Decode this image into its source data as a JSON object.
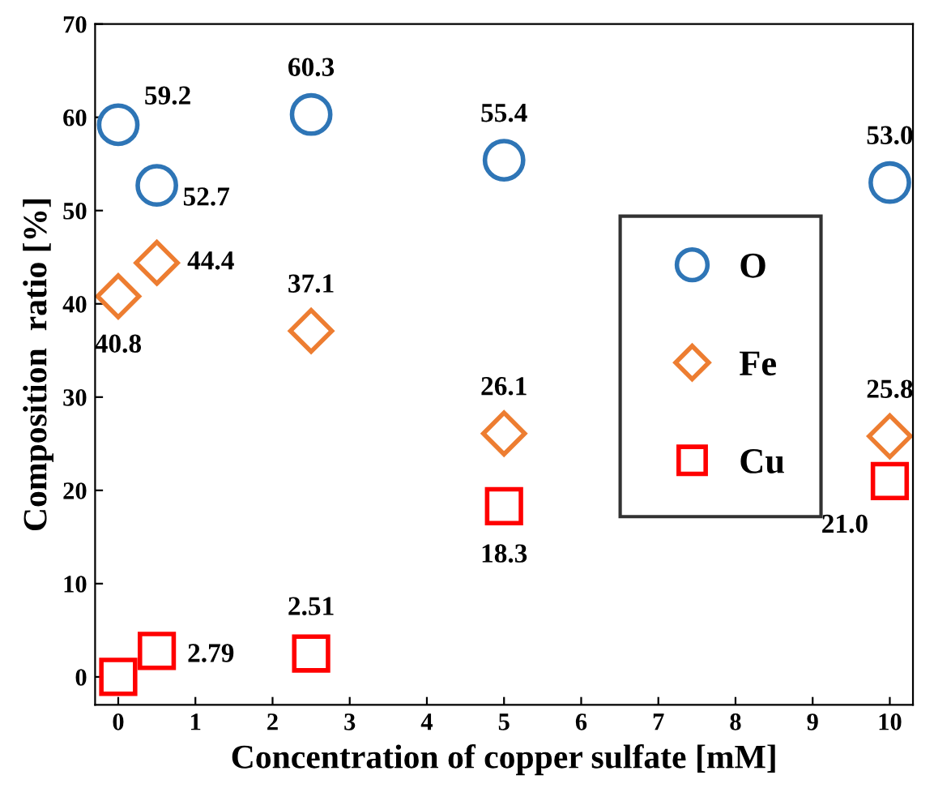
{
  "chart_data": {
    "type": "scatter",
    "xlabel": "Concentration of copper sulfate [mM]",
    "ylabel": "Composition  ratio [%]",
    "xlim": [
      -0.3,
      10.3
    ],
    "xticks": [
      0,
      1,
      2,
      3,
      4,
      5,
      6,
      7,
      8,
      9,
      10
    ],
    "ylim": [
      -3,
      70
    ],
    "yticks": [
      0,
      10,
      20,
      30,
      40,
      50,
      60,
      70
    ],
    "x": [
      0,
      0.5,
      2.5,
      5,
      10
    ],
    "legend": "right",
    "grid": false,
    "series": [
      {
        "name": "O",
        "color": "#2e75b6",
        "marker": "circle",
        "values": [
          59.2,
          52.7,
          60.3,
          55.4,
          53.0
        ],
        "value_labels": [
          "59.2",
          "52.7",
          "60.3",
          "55.4",
          "53.0"
        ]
      },
      {
        "name": "Fe",
        "color": "#ed7d31",
        "marker": "diamond",
        "values": [
          40.8,
          44.4,
          37.1,
          26.1,
          25.8
        ],
        "value_labels": [
          "40.8",
          "44.4",
          "37.1",
          "26.1",
          "25.8"
        ]
      },
      {
        "name": "Cu",
        "color": "#ff0000",
        "marker": "square",
        "values": [
          0,
          2.79,
          2.51,
          18.3,
          21.0
        ],
        "value_labels": [
          null,
          "2.79",
          "2.51",
          "18.3",
          "21.0"
        ]
      }
    ]
  }
}
